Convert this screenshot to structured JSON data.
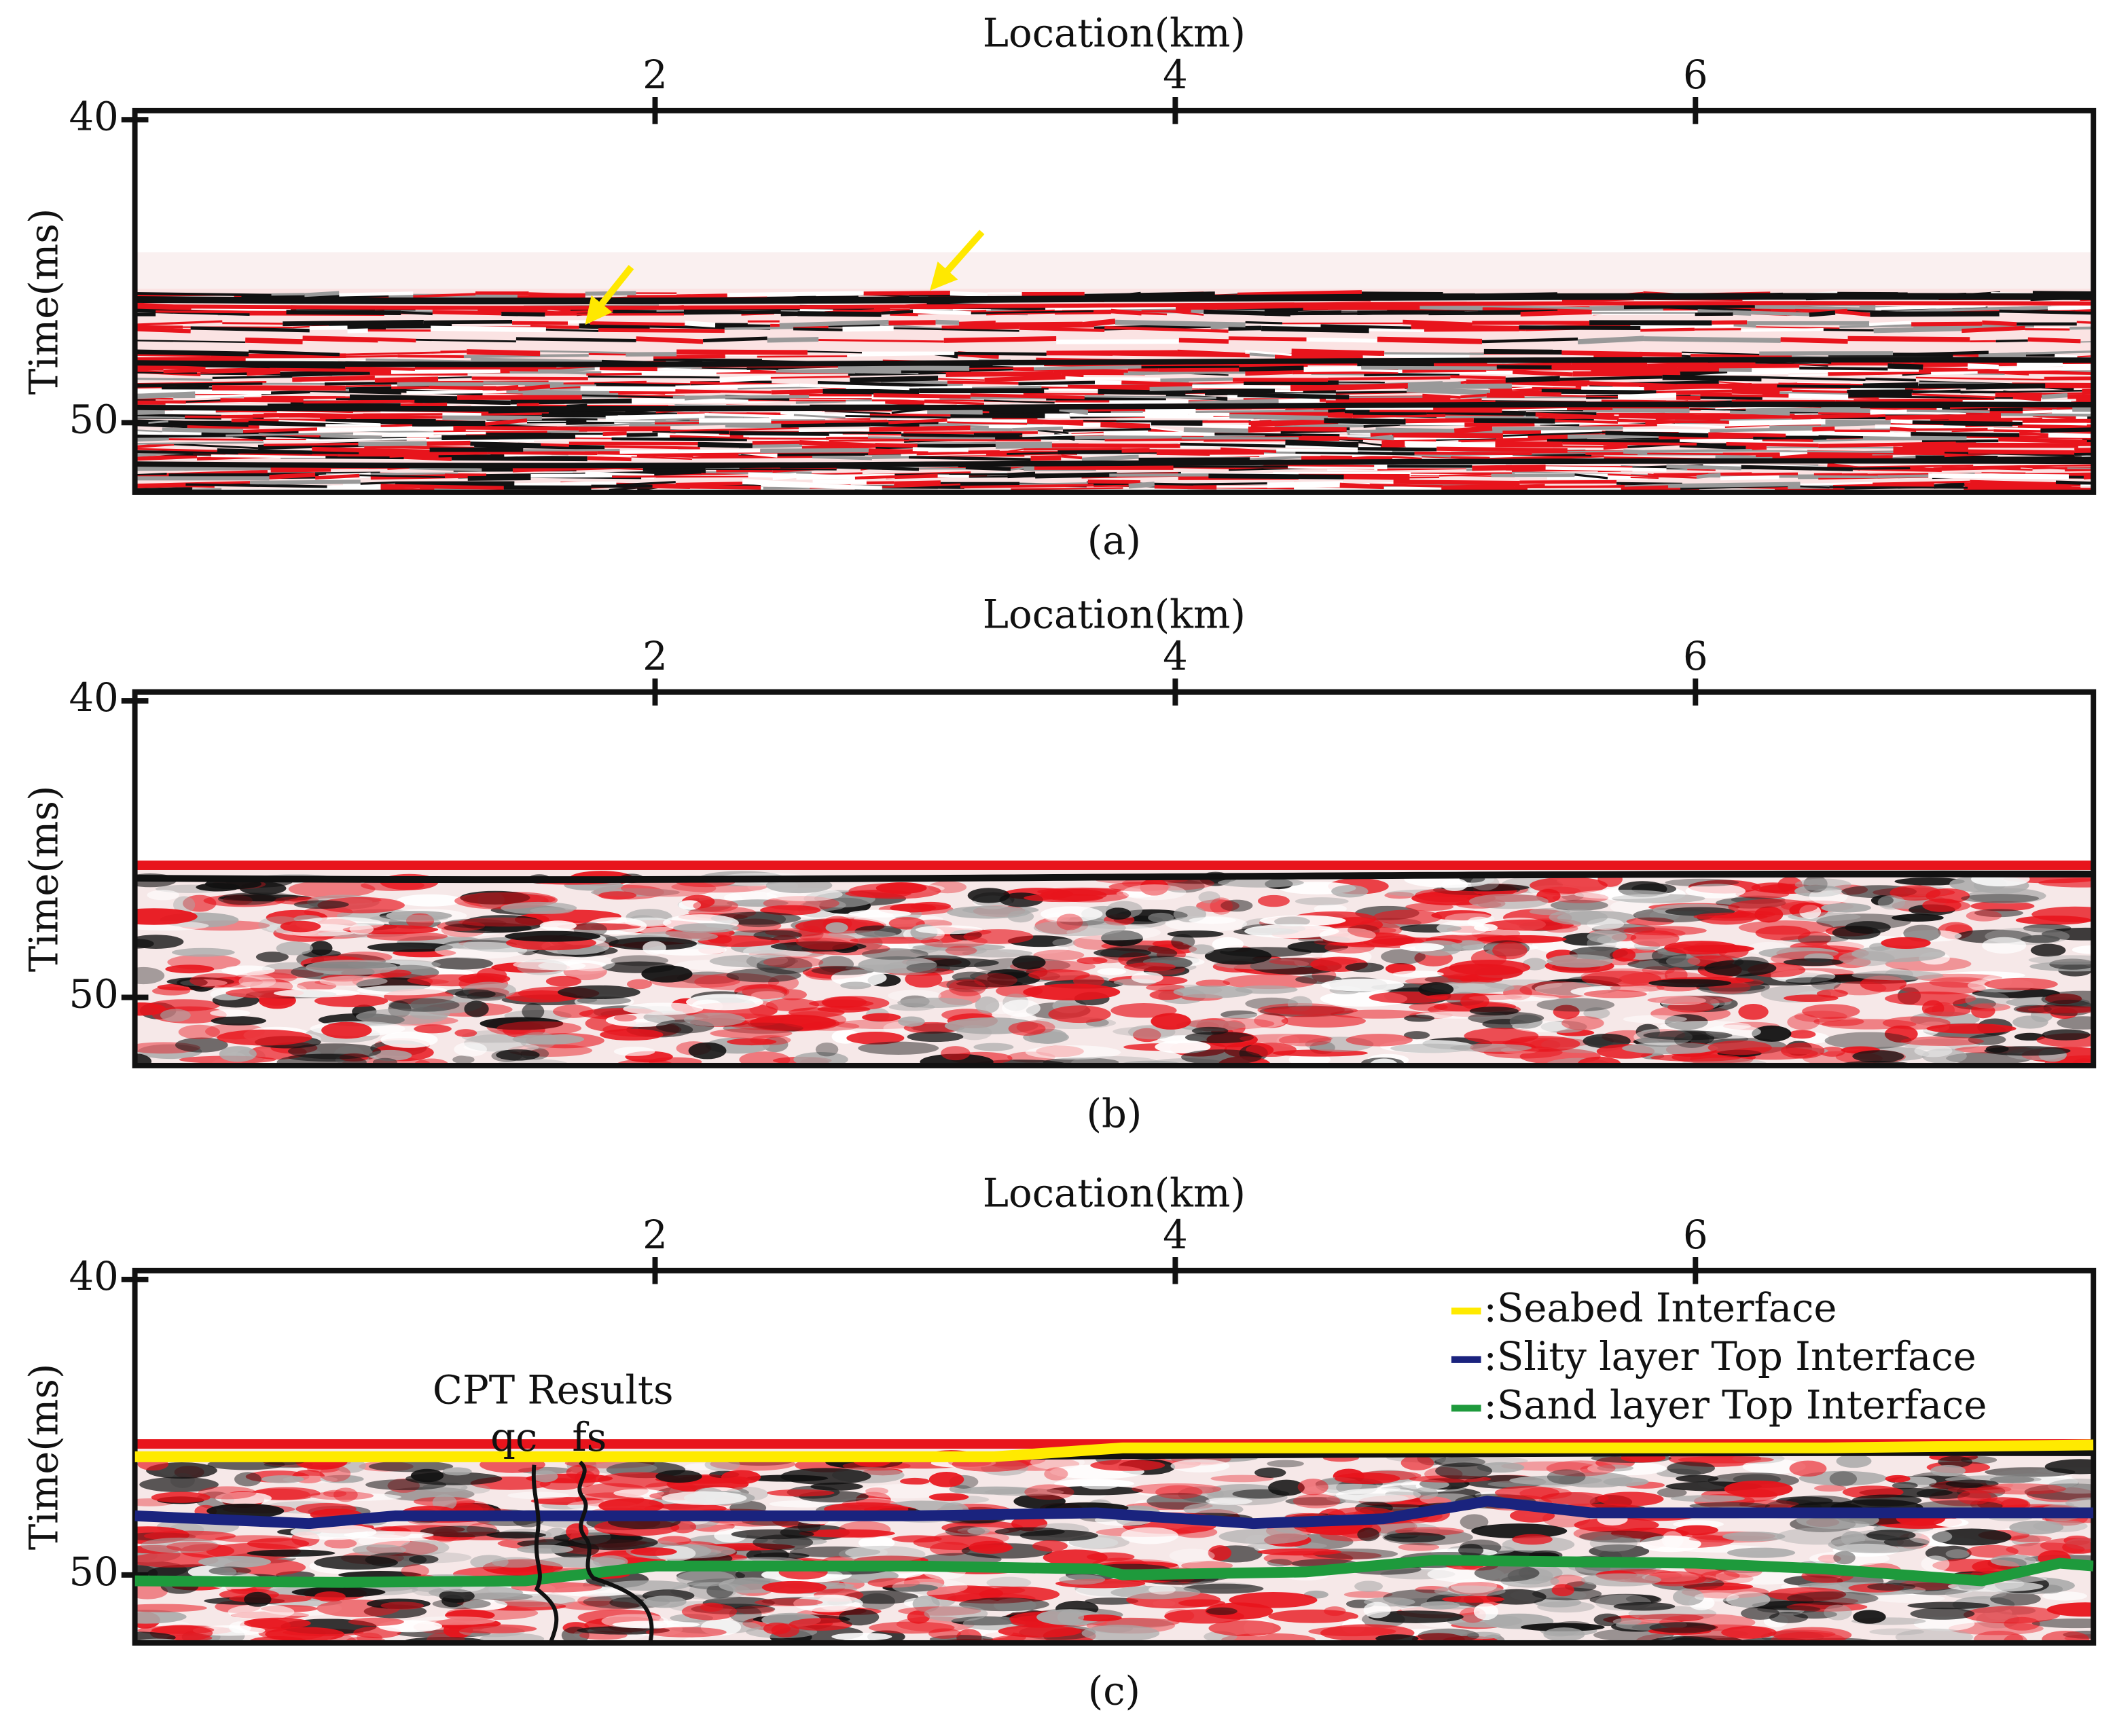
{
  "chart_data": [
    {
      "type": "seismic",
      "caption": "(a)",
      "xlabel": "Location(km)",
      "ylabel": "Time(ms)",
      "xlim": [
        0,
        7.53
      ],
      "xticks": [
        2,
        4,
        6
      ],
      "ylim": [
        39.7,
        52.3
      ],
      "yticks": [
        40,
        50
      ],
      "y_inverted": true,
      "texture": "traces"
    },
    {
      "type": "seismic",
      "caption": "(b)",
      "xlabel": "Location(km)",
      "ylabel": "Time(ms)",
      "xlim": [
        0,
        7.53
      ],
      "xticks": [
        2,
        4,
        6
      ],
      "ylim": [
        39.7,
        52.3
      ],
      "yticks": [
        40,
        50
      ],
      "y_inverted": true,
      "texture": "blobs"
    },
    {
      "type": "seismic",
      "caption": "(c)",
      "xlabel": "Location(km)",
      "ylabel": "Time(ms)",
      "xlim": [
        0,
        7.53
      ],
      "xticks": [
        2,
        4,
        6
      ],
      "ylim": [
        39.7,
        52.3
      ],
      "yticks": [
        40,
        50
      ],
      "y_inverted": true,
      "texture": "blobs",
      "legend": "upper right",
      "annotations": {
        "cpt_title": "CPT Results",
        "qc": "qc",
        "fs": "fs"
      },
      "series": [
        {
          "name": ":Seabed Interface",
          "color": "#ffea00",
          "x": [
            0,
            1,
            2,
            3,
            3.3,
            3.8,
            4.5,
            5.5,
            6.5,
            7.53
          ],
          "values": [
            46.0,
            46.0,
            46.0,
            46.0,
            46.0,
            45.7,
            45.7,
            45.7,
            45.7,
            45.6
          ]
        },
        {
          "name": ":Slity layer Top Interface",
          "color": "#1a237e",
          "x": [
            0,
            0.67,
            1,
            2,
            3,
            3.7,
            4.3,
            4.8,
            5.2,
            5.6,
            6.5,
            7.53
          ],
          "values": [
            48.0,
            48.26,
            48.0,
            48.0,
            48.0,
            47.9,
            48.26,
            48.1,
            47.5,
            47.9,
            47.9,
            47.9
          ]
        },
        {
          "name": ":Sand layer Top Interface",
          "color": "#1e9a3c",
          "x": [
            0,
            0.8,
            1.5,
            2,
            3,
            3.7,
            3.8,
            4.5,
            5,
            6,
            6.5,
            7.1,
            7.4,
            7.53
          ],
          "values": [
            50.2,
            50.25,
            50.2,
            49.7,
            49.7,
            49.8,
            50.0,
            49.9,
            49.5,
            49.6,
            49.8,
            50.2,
            49.6,
            49.7
          ]
        }
      ]
    }
  ]
}
